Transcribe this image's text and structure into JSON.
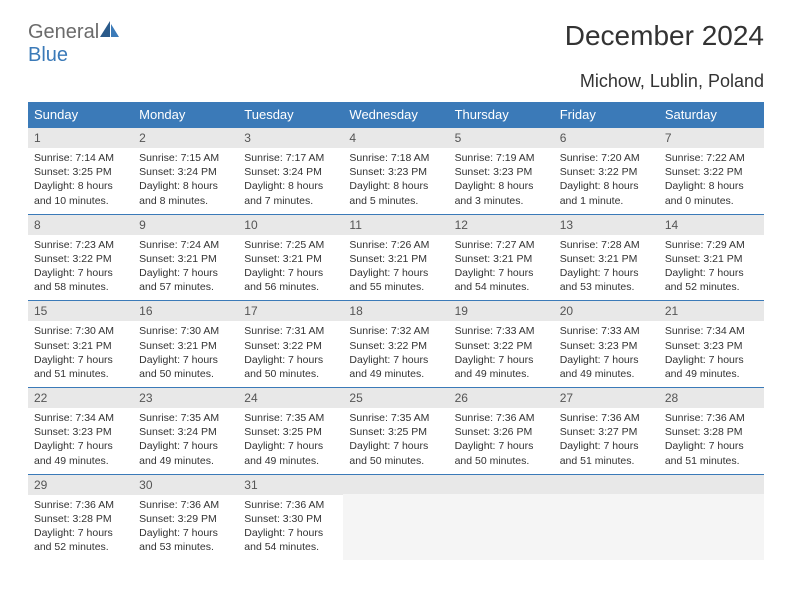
{
  "logo": {
    "text1": "General",
    "text2": "Blue"
  },
  "title": "December 2024",
  "location": "Michow, Lublin, Poland",
  "headers": [
    "Sunday",
    "Monday",
    "Tuesday",
    "Wednesday",
    "Thursday",
    "Friday",
    "Saturday"
  ],
  "colors": {
    "header_bg": "#3b7ab8",
    "header_fg": "#ffffff",
    "daynum_bg": "#e8e8e8",
    "border": "#3b7ab8",
    "logo_gray": "#6b6b6b",
    "logo_blue": "#3b7ab8"
  },
  "weeks": [
    [
      {
        "n": "1",
        "sr": "7:14 AM",
        "ss": "3:25 PM",
        "dl": "8 hours and 10 minutes."
      },
      {
        "n": "2",
        "sr": "7:15 AM",
        "ss": "3:24 PM",
        "dl": "8 hours and 8 minutes."
      },
      {
        "n": "3",
        "sr": "7:17 AM",
        "ss": "3:24 PM",
        "dl": "8 hours and 7 minutes."
      },
      {
        "n": "4",
        "sr": "7:18 AM",
        "ss": "3:23 PM",
        "dl": "8 hours and 5 minutes."
      },
      {
        "n": "5",
        "sr": "7:19 AM",
        "ss": "3:23 PM",
        "dl": "8 hours and 3 minutes."
      },
      {
        "n": "6",
        "sr": "7:20 AM",
        "ss": "3:22 PM",
        "dl": "8 hours and 1 minute."
      },
      {
        "n": "7",
        "sr": "7:22 AM",
        "ss": "3:22 PM",
        "dl": "8 hours and 0 minutes."
      }
    ],
    [
      {
        "n": "8",
        "sr": "7:23 AM",
        "ss": "3:22 PM",
        "dl": "7 hours and 58 minutes."
      },
      {
        "n": "9",
        "sr": "7:24 AM",
        "ss": "3:21 PM",
        "dl": "7 hours and 57 minutes."
      },
      {
        "n": "10",
        "sr": "7:25 AM",
        "ss": "3:21 PM",
        "dl": "7 hours and 56 minutes."
      },
      {
        "n": "11",
        "sr": "7:26 AM",
        "ss": "3:21 PM",
        "dl": "7 hours and 55 minutes."
      },
      {
        "n": "12",
        "sr": "7:27 AM",
        "ss": "3:21 PM",
        "dl": "7 hours and 54 minutes."
      },
      {
        "n": "13",
        "sr": "7:28 AM",
        "ss": "3:21 PM",
        "dl": "7 hours and 53 minutes."
      },
      {
        "n": "14",
        "sr": "7:29 AM",
        "ss": "3:21 PM",
        "dl": "7 hours and 52 minutes."
      }
    ],
    [
      {
        "n": "15",
        "sr": "7:30 AM",
        "ss": "3:21 PM",
        "dl": "7 hours and 51 minutes."
      },
      {
        "n": "16",
        "sr": "7:30 AM",
        "ss": "3:21 PM",
        "dl": "7 hours and 50 minutes."
      },
      {
        "n": "17",
        "sr": "7:31 AM",
        "ss": "3:22 PM",
        "dl": "7 hours and 50 minutes."
      },
      {
        "n": "18",
        "sr": "7:32 AM",
        "ss": "3:22 PM",
        "dl": "7 hours and 49 minutes."
      },
      {
        "n": "19",
        "sr": "7:33 AM",
        "ss": "3:22 PM",
        "dl": "7 hours and 49 minutes."
      },
      {
        "n": "20",
        "sr": "7:33 AM",
        "ss": "3:23 PM",
        "dl": "7 hours and 49 minutes."
      },
      {
        "n": "21",
        "sr": "7:34 AM",
        "ss": "3:23 PM",
        "dl": "7 hours and 49 minutes."
      }
    ],
    [
      {
        "n": "22",
        "sr": "7:34 AM",
        "ss": "3:23 PM",
        "dl": "7 hours and 49 minutes."
      },
      {
        "n": "23",
        "sr": "7:35 AM",
        "ss": "3:24 PM",
        "dl": "7 hours and 49 minutes."
      },
      {
        "n": "24",
        "sr": "7:35 AM",
        "ss": "3:25 PM",
        "dl": "7 hours and 49 minutes."
      },
      {
        "n": "25",
        "sr": "7:35 AM",
        "ss": "3:25 PM",
        "dl": "7 hours and 50 minutes."
      },
      {
        "n": "26",
        "sr": "7:36 AM",
        "ss": "3:26 PM",
        "dl": "7 hours and 50 minutes."
      },
      {
        "n": "27",
        "sr": "7:36 AM",
        "ss": "3:27 PM",
        "dl": "7 hours and 51 minutes."
      },
      {
        "n": "28",
        "sr": "7:36 AM",
        "ss": "3:28 PM",
        "dl": "7 hours and 51 minutes."
      }
    ],
    [
      {
        "n": "29",
        "sr": "7:36 AM",
        "ss": "3:28 PM",
        "dl": "7 hours and 52 minutes."
      },
      {
        "n": "30",
        "sr": "7:36 AM",
        "ss": "3:29 PM",
        "dl": "7 hours and 53 minutes."
      },
      {
        "n": "31",
        "sr": "7:36 AM",
        "ss": "3:30 PM",
        "dl": "7 hours and 54 minutes."
      },
      null,
      null,
      null,
      null
    ]
  ],
  "labels": {
    "sunrise": "Sunrise:",
    "sunset": "Sunset:",
    "daylight": "Daylight:"
  }
}
